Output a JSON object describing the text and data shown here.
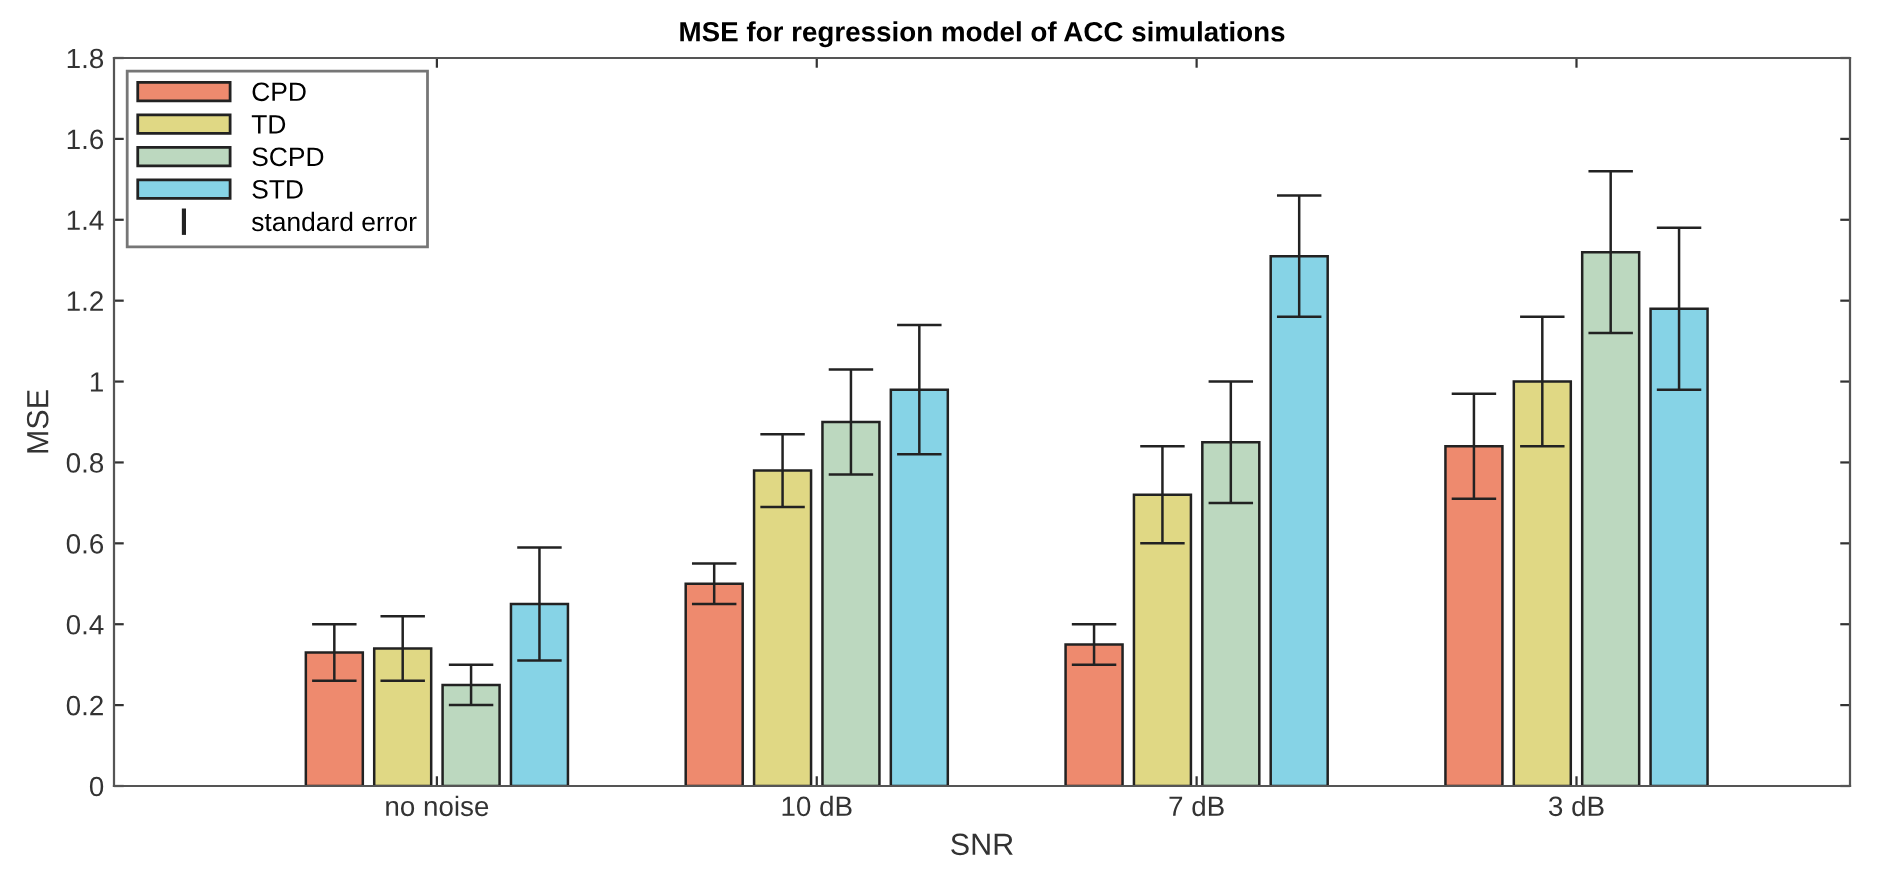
{
  "chart_data": {
    "type": "bar",
    "title": "MSE for regression model of ACC simulations",
    "xlabel": "SNR",
    "ylabel": "MSE",
    "categories": [
      "no noise",
      "10 dB",
      "7 dB",
      "3 dB"
    ],
    "series": [
      {
        "name": "CPD",
        "color": "#ee8a6e",
        "values": [
          0.33,
          0.5,
          0.35,
          0.84
        ],
        "errors": [
          0.07,
          0.05,
          0.05,
          0.13
        ]
      },
      {
        "name": "TD",
        "color": "#e0d884",
        "values": [
          0.34,
          0.78,
          0.72,
          1.0
        ],
        "errors": [
          0.08,
          0.09,
          0.12,
          0.16
        ]
      },
      {
        "name": "SCPD",
        "color": "#bcd8bf",
        "values": [
          0.25,
          0.9,
          0.85,
          1.32
        ],
        "errors": [
          0.05,
          0.13,
          0.15,
          0.2
        ]
      },
      {
        "name": "STD",
        "color": "#86d3e6",
        "values": [
          0.45,
          0.98,
          1.31,
          1.18
        ],
        "errors": [
          0.14,
          0.16,
          0.15,
          0.2
        ]
      }
    ],
    "annotations": [
      "standard error"
    ],
    "ylim": [
      0,
      1.8
    ],
    "yticks": [
      0,
      0.2,
      0.4,
      0.6,
      0.8,
      1,
      1.2,
      1.4,
      1.6,
      1.8
    ],
    "legend": "top left",
    "grid": false
  }
}
